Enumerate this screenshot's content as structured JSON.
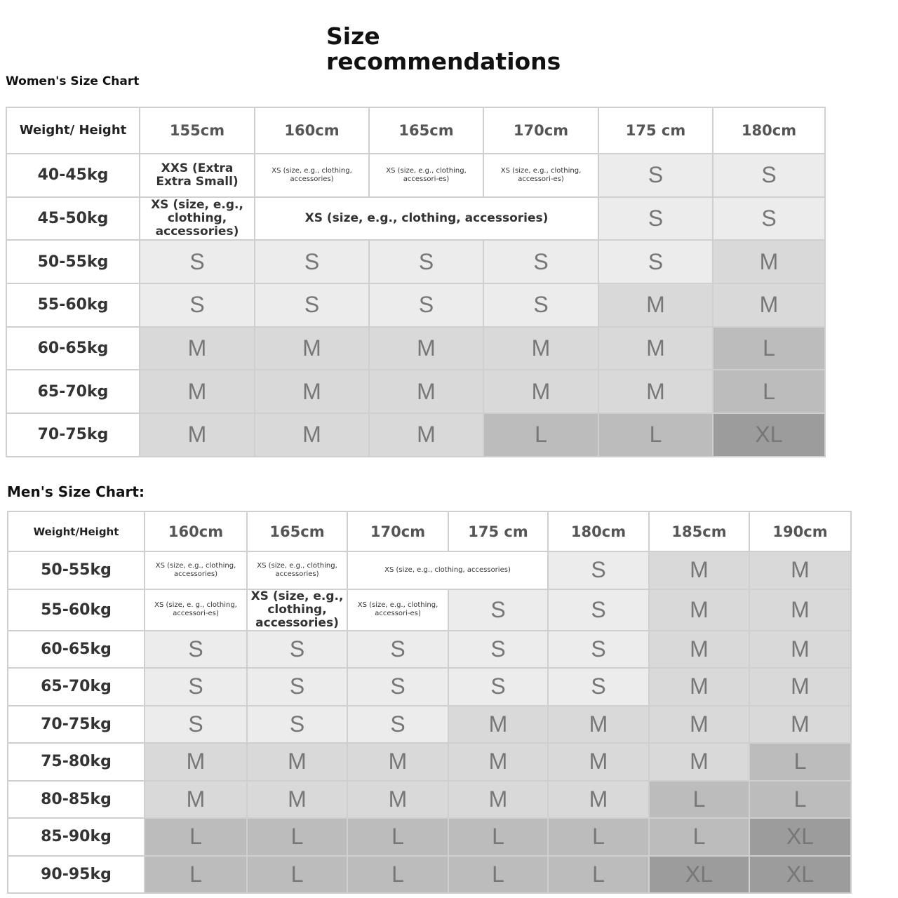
{
  "title": "Size recommendations",
  "shades": {
    "S": "#ececec",
    "M": "#d9d9d9",
    "L": "#bcbcbc",
    "XL": "#9c9c9c"
  },
  "women": {
    "heading": "Women's Size Chart",
    "header": [
      "Weight/ Height",
      "155cm",
      "160cm",
      "165cm",
      "170cm",
      "175 cm",
      "180cm"
    ],
    "rows": [
      {
        "label": "40-45kg",
        "cells": [
          "XXS (Extra Extra Small)",
          "XS (size, e.g., clothing, accessories)",
          "XS (size, e.g., clothing, accessori-es)",
          "XS (size, e.g., clothing, accessori-es)",
          "S",
          "S"
        ]
      },
      {
        "label": "45-50kg",
        "cells": [
          "XS (size, e.g., clothing, accessories)",
          {
            "text": "XS (size, e.g., clothing, accessories)",
            "colspan": 3
          },
          "S",
          "S"
        ]
      },
      {
        "label": "50-55kg",
        "cells": [
          "S",
          "S",
          "S",
          "S",
          "S",
          "M"
        ]
      },
      {
        "label": "55-60kg",
        "cells": [
          "S",
          "S",
          "S",
          "S",
          "M",
          "M"
        ]
      },
      {
        "label": "60-65kg",
        "cells": [
          "M",
          "M",
          "M",
          "M",
          "M",
          "L"
        ]
      },
      {
        "label": "65-70kg",
        "cells": [
          "M",
          "M",
          "M",
          "M",
          "M",
          "L"
        ]
      },
      {
        "label": "70-75kg",
        "cells": [
          "M",
          "M",
          "M",
          "L",
          "L",
          "XL"
        ]
      }
    ]
  },
  "men": {
    "heading": "Men's Size Chart:",
    "header": [
      "Weight/Height",
      "160cm",
      "165cm",
      "170cm",
      "175 cm",
      "180cm",
      "185cm",
      "190cm"
    ],
    "rows": [
      {
        "label": "50-55kg",
        "cells": [
          "XS (size, e.g., clothing, accessories)",
          "XS (size, e.g., clothing, accessories)",
          {
            "text": "XS (size, e.g., clothing, accessories)",
            "colspan": 2
          },
          "S",
          "M",
          "M"
        ]
      },
      {
        "label": "55-60kg",
        "cells": [
          "XS (size, e. g., clothing, accessori-es)",
          "XS (size, e.g., clothing, accessories)",
          "XS (size, e.g., clothing, accessori-es)",
          "S",
          "S",
          "M",
          "M"
        ]
      },
      {
        "label": "60-65kg",
        "cells": [
          "S",
          "S",
          "S",
          "S",
          "S",
          "M",
          "M"
        ]
      },
      {
        "label": "65-70kg",
        "cells": [
          "S",
          "S",
          "S",
          "S",
          "S",
          "M",
          "M"
        ]
      },
      {
        "label": "70-75kg",
        "cells": [
          "S",
          "S",
          "S",
          "M",
          "M",
          "M",
          "M"
        ]
      },
      {
        "label": "75-80kg",
        "cells": [
          "M",
          "M",
          "M",
          "M",
          "M",
          "M",
          "L"
        ]
      },
      {
        "label": "80-85kg",
        "cells": [
          "M",
          "M",
          "M",
          "M",
          "M",
          "L",
          "L"
        ]
      },
      {
        "label": "85-90kg",
        "cells": [
          "L",
          "L",
          "L",
          "L",
          "L",
          "L",
          "XL"
        ]
      },
      {
        "label": "90-95kg",
        "cells": [
          "L",
          "L",
          "L",
          "L",
          "L",
          "XL",
          "XL"
        ]
      }
    ]
  }
}
